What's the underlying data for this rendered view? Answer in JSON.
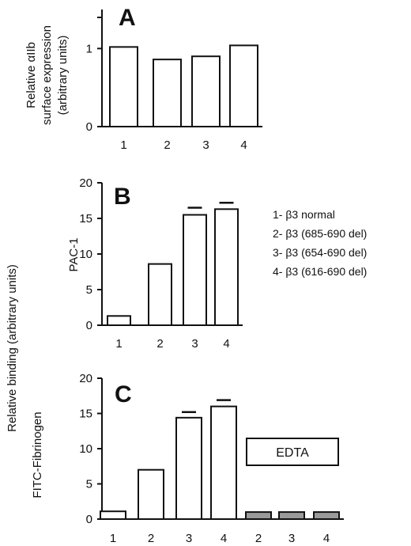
{
  "colors": {
    "ink": "#111111",
    "bar_fill": "#ffffff",
    "bar_fill_edta": "#9a9a9a"
  },
  "chart_data": [
    {
      "panel": "A",
      "type": "bar",
      "ylabel_lines": [
        "Relative αIIb",
        "surface expression",
        "(arbitrary units)"
      ],
      "ylim": [
        0,
        1.5
      ],
      "yticks": [
        0,
        1
      ],
      "grid": false,
      "categories": [
        "1",
        "2",
        "3",
        "4"
      ],
      "values": [
        1.02,
        0.86,
        0.9,
        1.04
      ]
    },
    {
      "panel": "B",
      "type": "bar",
      "ylabel": "PAC-1",
      "ylim": [
        0,
        20
      ],
      "yticks": [
        0,
        5,
        10,
        15,
        20
      ],
      "grid": false,
      "categories": [
        "1",
        "2",
        "3",
        "4"
      ],
      "values": [
        1.3,
        8.6,
        15.5,
        16.3
      ],
      "errors": [
        0,
        0,
        1.0,
        0.9
      ]
    },
    {
      "panel": "C",
      "type": "bar",
      "ylabel": "FITC-Fibrinogen",
      "ylim": [
        0,
        20
      ],
      "yticks": [
        0,
        5,
        10,
        15,
        20
      ],
      "grid": false,
      "categories": [
        "1",
        "2",
        "3",
        "4",
        "2",
        "3",
        "4"
      ],
      "values": [
        1.1,
        7.0,
        14.4,
        16.0,
        1.0,
        1.0,
        1.0
      ],
      "errors": [
        0,
        0,
        0.8,
        0.9,
        0,
        0,
        0
      ],
      "group_label": "EDTA",
      "edta_start_index": 4
    }
  ],
  "shared_ylabel": "Relative binding  (arbitrary units)",
  "legend": [
    "1- β3 normal",
    "2- β3 (685-690 del)",
    "3- β3 (654-690 del)",
    "4- β3 (616-690 del)"
  ]
}
